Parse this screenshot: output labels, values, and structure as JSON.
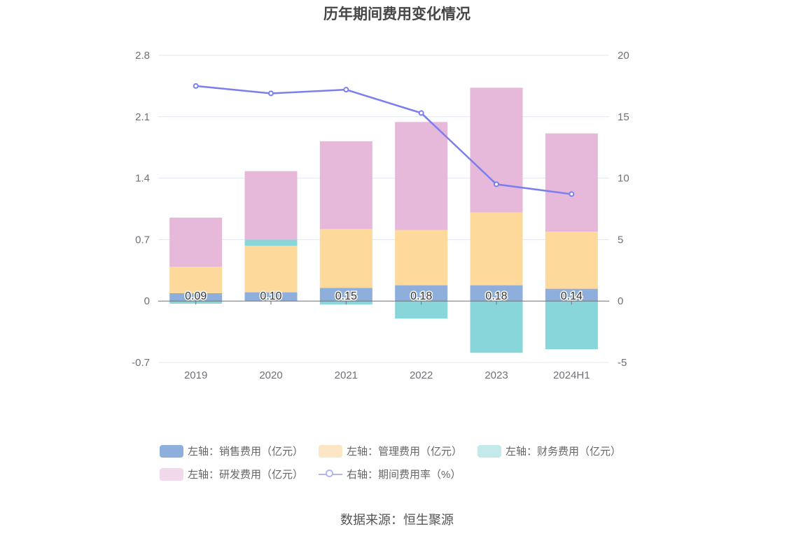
{
  "chart_data": {
    "type": "bar",
    "title": "历年期间费用变化情况",
    "categories": [
      "2019",
      "2020",
      "2021",
      "2022",
      "2023",
      "2024H1"
    ],
    "y_left": {
      "ticks": [
        "2.8",
        "2.1",
        "1.4",
        "0.7",
        "0",
        "-0.7"
      ],
      "ylim": [
        -0.7,
        2.8
      ]
    },
    "y_right": {
      "ticks": [
        "20",
        "15",
        "10",
        "5",
        "0",
        "-5"
      ],
      "ylim": [
        -5,
        20
      ]
    },
    "grid": true,
    "legend_position": "bottom",
    "series": [
      {
        "name": "左轴：销售费用（亿元）",
        "type": "bar",
        "axis": "left",
        "color": "#8eaedb",
        "values": [
          0.09,
          0.1,
          0.15,
          0.18,
          0.18,
          0.14
        ],
        "data_labels": [
          "0.09",
          "0.10",
          "0.15",
          "0.18",
          "0.18",
          "0.14"
        ]
      },
      {
        "name": "左轴：管理费用（亿元）",
        "type": "bar",
        "axis": "left",
        "color": "#fdd99b",
        "values": [
          0.3,
          0.53,
          0.67,
          0.63,
          0.83,
          0.65
        ]
      },
      {
        "name": "左轴：财务费用（亿元）",
        "type": "bar",
        "axis": "left",
        "color": "#89d6da",
        "values": [
          -0.03,
          0.07,
          -0.04,
          -0.2,
          -0.59,
          -0.55
        ]
      },
      {
        "name": "左轴：研发费用（亿元）",
        "type": "bar",
        "axis": "left",
        "color": "#e6b8da",
        "values": [
          0.56,
          0.78,
          1.0,
          1.23,
          1.42,
          1.12
        ]
      },
      {
        "name": "右轴：期间费用率（%）",
        "type": "line",
        "axis": "right",
        "color": "#7b7fee",
        "values": [
          17.5,
          16.9,
          17.2,
          15.3,
          9.5,
          8.7
        ]
      }
    ]
  },
  "legend": {
    "rows": [
      [
        {
          "label": "左轴：销售费用（亿元）",
          "color": "#8eaedb",
          "kind": "bar"
        },
        {
          "label": "左轴：管理费用（亿元）",
          "color": "#fde6c4",
          "kind": "bar"
        },
        {
          "label": "左轴：财务费用（亿元）",
          "color": "#c4e9eb",
          "kind": "bar"
        }
      ],
      [
        {
          "label": "左轴：研发费用（亿元）",
          "color": "#f1d8eb",
          "kind": "bar"
        },
        {
          "label": "右轴：期间费用率（%）",
          "color": "#b3b6f5",
          "kind": "line"
        }
      ]
    ]
  },
  "source": "数据来源：恒生聚源"
}
